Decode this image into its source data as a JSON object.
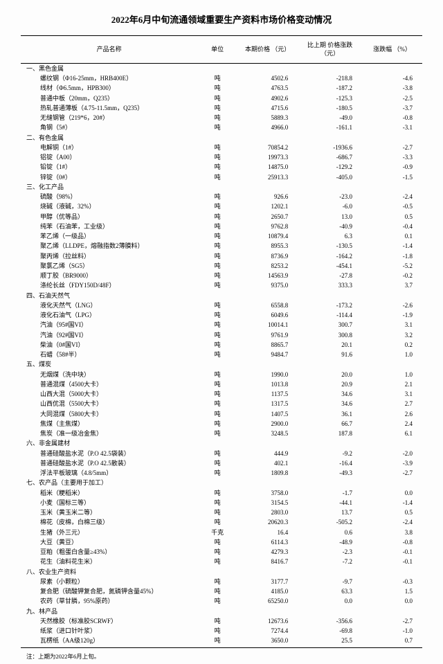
{
  "title": "2022年6月中旬流通领域重要生产资料市场价格变动情况",
  "headers": {
    "name": "产品名称",
    "unit": "单位",
    "price": "本期价格\n（元）",
    "change": "比上期\n价格涨跌\n（元）",
    "pct": "涨跌幅 （%）"
  },
  "footnote": "注：上期为2022年6月上旬。",
  "sections": [
    {
      "label": "一、黑色金属",
      "rows": [
        {
          "name": "螺纹钢（Φ16-25mm，HRB400E）",
          "unit": "吨",
          "price": "4502.6",
          "change": "-218.8",
          "pct": "-4.6"
        },
        {
          "name": "线材（Φ6.5mm，HPB300）",
          "unit": "吨",
          "price": "4763.5",
          "change": "-187.2",
          "pct": "-3.8"
        },
        {
          "name": "普通中板（20mm，Q235）",
          "unit": "吨",
          "price": "4902.6",
          "change": "-125.3",
          "pct": "-2.5"
        },
        {
          "name": "热轧普通薄板（4.75-11.5mm，Q235）",
          "unit": "吨",
          "price": "4715.6",
          "change": "-180.5",
          "pct": "-3.7"
        },
        {
          "name": "无缝钢管（219*6，20#）",
          "unit": "吨",
          "price": "5889.3",
          "change": "-49.0",
          "pct": "-0.8"
        },
        {
          "name": "角钢（5#）",
          "unit": "吨",
          "price": "4966.0",
          "change": "-161.1",
          "pct": "-3.1"
        }
      ]
    },
    {
      "label": "二、有色金属",
      "rows": [
        {
          "name": "电解铜（1#）",
          "unit": "吨",
          "price": "70854.2",
          "change": "-1936.6",
          "pct": "-2.7"
        },
        {
          "name": "铝锭（A00）",
          "unit": "吨",
          "price": "19973.3",
          "change": "-686.7",
          "pct": "-3.3"
        },
        {
          "name": "铅锭（1#）",
          "unit": "吨",
          "price": "14875.0",
          "change": "-129.2",
          "pct": "-0.9"
        },
        {
          "name": "锌锭（0#）",
          "unit": "吨",
          "price": "25913.3",
          "change": "-405.0",
          "pct": "-1.5"
        }
      ]
    },
    {
      "label": "三、化工产品",
      "rows": [
        {
          "name": "硫酸（98%）",
          "unit": "吨",
          "price": "926.6",
          "change": "-23.0",
          "pct": "-2.4"
        },
        {
          "name": "烧碱（液碱，32%）",
          "unit": "吨",
          "price": "1202.1",
          "change": "-6.0",
          "pct": "-0.5"
        },
        {
          "name": "甲醇（优等品）",
          "unit": "吨",
          "price": "2650.7",
          "change": "13.0",
          "pct": "0.5"
        },
        {
          "name": "纯苯（石油苯，工业级）",
          "unit": "吨",
          "price": "9762.8",
          "change": "-40.9",
          "pct": "-0.4"
        },
        {
          "name": "苯乙烯（一级品）",
          "unit": "吨",
          "price": "10879.4",
          "change": "6.3",
          "pct": "0.1"
        },
        {
          "name": "聚乙烯（LLDPE，熔融指数2薄膜料）",
          "unit": "吨",
          "price": "8955.3",
          "change": "-130.5",
          "pct": "-1.4"
        },
        {
          "name": "聚丙烯（拉丝料）",
          "unit": "吨",
          "price": "8736.9",
          "change": "-164.2",
          "pct": "-1.8"
        },
        {
          "name": "聚氯乙烯（SG5）",
          "unit": "吨",
          "price": "8253.2",
          "change": "-454.1",
          "pct": "-5.2"
        },
        {
          "name": "顺丁胶（BR9000）",
          "unit": "吨",
          "price": "14563.9",
          "change": "-27.8",
          "pct": "-0.2"
        },
        {
          "name": "涤纶长丝（FDY150D/48F）",
          "unit": "吨",
          "price": "9375.0",
          "change": "333.3",
          "pct": "3.7"
        }
      ]
    },
    {
      "label": "四、石油天然气",
      "rows": [
        {
          "name": "液化天然气（LNG）",
          "unit": "吨",
          "price": "6558.8",
          "change": "-173.2",
          "pct": "-2.6"
        },
        {
          "name": "液化石油气（LPG）",
          "unit": "吨",
          "price": "6049.6",
          "change": "-114.4",
          "pct": "-1.9"
        },
        {
          "name": "汽油（95#国VI）",
          "unit": "吨",
          "price": "10014.1",
          "change": "300.7",
          "pct": "3.1"
        },
        {
          "name": "汽油（92#国VI）",
          "unit": "吨",
          "price": "9761.9",
          "change": "300.8",
          "pct": "3.2"
        },
        {
          "name": "柴油（0#国VI）",
          "unit": "吨",
          "price": "8865.7",
          "change": "20.1",
          "pct": "0.2"
        },
        {
          "name": "石蜡（58#半）",
          "unit": "吨",
          "price": "9484.7",
          "change": "91.6",
          "pct": "1.0"
        }
      ]
    },
    {
      "label": "五、煤炭",
      "rows": [
        {
          "name": "无烟煤（洗中块）",
          "unit": "吨",
          "price": "1990.0",
          "change": "20.0",
          "pct": "1.0"
        },
        {
          "name": "普通混煤（4500大卡）",
          "unit": "吨",
          "price": "1013.8",
          "change": "20.9",
          "pct": "2.1"
        },
        {
          "name": "山西大混（5000大卡）",
          "unit": "吨",
          "price": "1137.5",
          "change": "34.6",
          "pct": "3.1"
        },
        {
          "name": "山西优混（5500大卡）",
          "unit": "吨",
          "price": "1317.5",
          "change": "34.6",
          "pct": "2.7"
        },
        {
          "name": "大同混煤（5800大卡）",
          "unit": "吨",
          "price": "1407.5",
          "change": "36.1",
          "pct": "2.6"
        },
        {
          "name": "焦煤（主焦煤）",
          "unit": "吨",
          "price": "2900.0",
          "change": "66.7",
          "pct": "2.4"
        },
        {
          "name": "焦炭（准一级冶金焦）",
          "unit": "吨",
          "price": "3248.5",
          "change": "187.8",
          "pct": "6.1"
        }
      ]
    },
    {
      "label": "六、非金属建材",
      "rows": [
        {
          "name": "普通硅酸盐水泥（P.O 42.5袋装）",
          "unit": "吨",
          "price": "444.9",
          "change": "-9.2",
          "pct": "-2.0"
        },
        {
          "name": "普通硅酸盐水泥（P.O 42.5散装）",
          "unit": "吨",
          "price": "402.1",
          "change": "-16.4",
          "pct": "-3.9"
        },
        {
          "name": "浮法平板玻璃（4.8/5mm）",
          "unit": "吨",
          "price": "1809.8",
          "change": "-49.3",
          "pct": "-2.7"
        }
      ]
    },
    {
      "label": "七、农产品（主要用于加工）",
      "rows": [
        {
          "name": "稻米（粳稻米）",
          "unit": "吨",
          "price": "3758.0",
          "change": "-1.7",
          "pct": "0.0"
        },
        {
          "name": "小麦（国标三等）",
          "unit": "吨",
          "price": "3154.5",
          "change": "-44.1",
          "pct": "-1.4"
        },
        {
          "name": "玉米（黄玉米二等）",
          "unit": "吨",
          "price": "2803.0",
          "change": "13.7",
          "pct": "0.5"
        },
        {
          "name": "棉花（皮棉，白棉三级）",
          "unit": "吨",
          "price": "20620.3",
          "change": "-505.2",
          "pct": "-2.4"
        },
        {
          "name": "生猪（外三元）",
          "unit": "千克",
          "price": "16.4",
          "change": "0.6",
          "pct": "3.8"
        },
        {
          "name": "大豆（黄豆）",
          "unit": "吨",
          "price": "6114.3",
          "change": "-48.9",
          "pct": "-0.8"
        },
        {
          "name": "豆粕（粗蛋白含量≥43%）",
          "unit": "吨",
          "price": "4279.3",
          "change": "-2.3",
          "pct": "-0.1"
        },
        {
          "name": "花生（油料花生米）",
          "unit": "吨",
          "price": "8416.7",
          "change": "-7.2",
          "pct": "-0.1"
        }
      ]
    },
    {
      "label": "八、农业生产资料",
      "rows": [
        {
          "name": "尿素（小颗粒）",
          "unit": "吨",
          "price": "3177.7",
          "change": "-9.7",
          "pct": "-0.3"
        },
        {
          "name": "复合肥（硫酸钾复合肥，氮磷钾含量45%）",
          "unit": "吨",
          "price": "4185.0",
          "change": "63.3",
          "pct": "1.5"
        },
        {
          "name": "农药（草甘膦，95%原药）",
          "unit": "吨",
          "price": "65250.0",
          "change": "0.0",
          "pct": "0.0"
        }
      ]
    },
    {
      "label": "九、林产品",
      "rows": [
        {
          "name": "天然橡胶（标准胶SCRWF）",
          "unit": "吨",
          "price": "12673.6",
          "change": "-356.6",
          "pct": "-2.7"
        },
        {
          "name": "纸浆（进口针叶浆）",
          "unit": "吨",
          "price": "7274.4",
          "change": "-69.8",
          "pct": "-1.0"
        },
        {
          "name": "瓦楞纸（AA级120g）",
          "unit": "吨",
          "price": "3650.0",
          "change": "25.5",
          "pct": "0.7"
        }
      ]
    }
  ]
}
